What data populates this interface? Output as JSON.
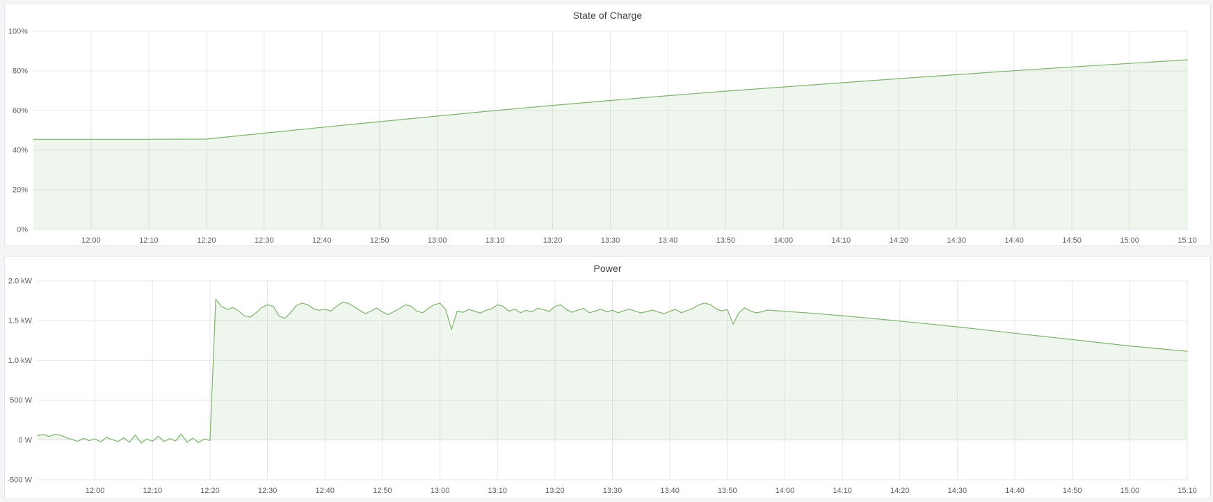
{
  "colors": {
    "page_bg": "#f4f5f6",
    "panel_bg": "#ffffff",
    "panel_border": "#e3e5e8",
    "title_text": "#3f434a",
    "axis_text": "#5a5f66",
    "grid": "#e6e7e9",
    "series_green": "#7EB26D",
    "series_fill": "rgba(126,178,109,0.12)"
  },
  "chart_data": [
    {
      "type": "area",
      "title": "State of Charge",
      "ylabel": "",
      "xlabel": "",
      "x_range": [
        "11:50",
        "15:10"
      ],
      "x_ticks": [
        "12:00",
        "12:10",
        "12:20",
        "12:30",
        "12:40",
        "12:50",
        "13:00",
        "13:10",
        "13:20",
        "13:30",
        "13:40",
        "13:50",
        "14:00",
        "14:10",
        "14:20",
        "14:30",
        "14:40",
        "14:50",
        "15:00",
        "15:10"
      ],
      "ylim": [
        0,
        100
      ],
      "y_ticks": [
        {
          "value": 0,
          "label": "0%"
        },
        {
          "value": 20,
          "label": "20%"
        },
        {
          "value": 40,
          "label": "40%"
        },
        {
          "value": 60,
          "label": "60%"
        },
        {
          "value": 80,
          "label": "80%"
        },
        {
          "value": 100,
          "label": "100%"
        }
      ],
      "grid": true,
      "legend": "none",
      "fill_baseline": 0,
      "series": [
        {
          "name": "State of Charge",
          "unit": "%",
          "points": [
            [
              "11:50",
              45.5
            ],
            [
              "12:00",
              45.5
            ],
            [
              "12:10",
              45.5
            ],
            [
              "12:20",
              45.6
            ],
            [
              "12:30",
              48.6
            ],
            [
              "12:40",
              51.5
            ],
            [
              "12:50",
              54.4
            ],
            [
              "13:00",
              57.2
            ],
            [
              "13:10",
              60.0
            ],
            [
              "13:20",
              62.6
            ],
            [
              "13:30",
              65.1
            ],
            [
              "13:40",
              67.5
            ],
            [
              "13:50",
              69.8
            ],
            [
              "14:00",
              71.9
            ],
            [
              "14:10",
              74.0
            ],
            [
              "14:20",
              76.1
            ],
            [
              "14:30",
              78.1
            ],
            [
              "14:40",
              80.1
            ],
            [
              "14:50",
              82.0
            ],
            [
              "15:00",
              83.8
            ],
            [
              "15:10",
              85.6
            ]
          ]
        }
      ]
    },
    {
      "type": "area",
      "title": "Power",
      "ylabel": "",
      "xlabel": "",
      "x_range": [
        "11:50",
        "15:10"
      ],
      "x_ticks": [
        "12:00",
        "12:10",
        "12:20",
        "12:30",
        "12:40",
        "12:50",
        "13:00",
        "13:10",
        "13:20",
        "13:30",
        "13:40",
        "13:50",
        "14:00",
        "14:10",
        "14:20",
        "14:30",
        "14:40",
        "14:50",
        "15:00",
        "15:10"
      ],
      "ylim": [
        -500,
        2000
      ],
      "y_ticks": [
        {
          "value": -500,
          "label": "-500 W"
        },
        {
          "value": 0,
          "label": "0 W"
        },
        {
          "value": 500,
          "label": "500 W"
        },
        {
          "value": 1000,
          "label": "1.0 kW"
        },
        {
          "value": 1500,
          "label": "1.5 kW"
        },
        {
          "value": 2000,
          "label": "2.0 kW"
        }
      ],
      "grid": true,
      "legend": "none",
      "fill_baseline": 0,
      "series": [
        {
          "name": "Power",
          "unit": "W",
          "points": [
            [
              "11:50",
              55
            ],
            [
              "11:51",
              70
            ],
            [
              "11:52",
              45
            ],
            [
              "11:53",
              72
            ],
            [
              "11:54",
              60
            ],
            [
              "11:55",
              30
            ],
            [
              "11:56",
              8
            ],
            [
              "11:57",
              -18
            ],
            [
              "11:58",
              22
            ],
            [
              "11:59",
              -8
            ],
            [
              "12:00",
              15
            ],
            [
              "12:01",
              -25
            ],
            [
              "12:02",
              35
            ],
            [
              "12:03",
              5
            ],
            [
              "12:04",
              -22
            ],
            [
              "12:05",
              28
            ],
            [
              "12:06",
              -30
            ],
            [
              "12:07",
              65
            ],
            [
              "12:08",
              -38
            ],
            [
              "12:09",
              12
            ],
            [
              "12:10",
              -15
            ],
            [
              "12:11",
              48
            ],
            [
              "12:12",
              -20
            ],
            [
              "12:13",
              18
            ],
            [
              "12:14",
              -12
            ],
            [
              "12:15",
              75
            ],
            [
              "12:16",
              -28
            ],
            [
              "12:17",
              22
            ],
            [
              "12:18",
              -32
            ],
            [
              "12:19",
              12
            ],
            [
              "12:20",
              -5
            ],
            [
              "12:21",
              1770
            ],
            [
              "12:22",
              1680
            ],
            [
              "12:23",
              1640
            ],
            [
              "12:24",
              1665
            ],
            [
              "12:25",
              1620
            ],
            [
              "12:26",
              1560
            ],
            [
              "12:27",
              1545
            ],
            [
              "12:28",
              1600
            ],
            [
              "12:29",
              1665
            ],
            [
              "12:30",
              1700
            ],
            [
              "12:31",
              1680
            ],
            [
              "12:32",
              1560
            ],
            [
              "12:33",
              1530
            ],
            [
              "12:34",
              1600
            ],
            [
              "12:35",
              1690
            ],
            [
              "12:36",
              1720
            ],
            [
              "12:37",
              1700
            ],
            [
              "12:38",
              1650
            ],
            [
              "12:39",
              1630
            ],
            [
              "12:40",
              1645
            ],
            [
              "12:41",
              1620
            ],
            [
              "12:42",
              1680
            ],
            [
              "12:43",
              1730
            ],
            [
              "12:44",
              1720
            ],
            [
              "12:45",
              1680
            ],
            [
              "12:46",
              1630
            ],
            [
              "12:47",
              1590
            ],
            [
              "12:48",
              1620
            ],
            [
              "12:49",
              1660
            ],
            [
              "12:50",
              1610
            ],
            [
              "12:51",
              1575
            ],
            [
              "12:52",
              1615
            ],
            [
              "12:53",
              1655
            ],
            [
              "12:54",
              1700
            ],
            [
              "12:55",
              1680
            ],
            [
              "12:56",
              1620
            ],
            [
              "12:57",
              1600
            ],
            [
              "12:58",
              1655
            ],
            [
              "12:59",
              1700
            ],
            [
              "13:00",
              1720
            ],
            [
              "13:01",
              1640
            ],
            [
              "13:02",
              1390
            ],
            [
              "13:03",
              1620
            ],
            [
              "13:04",
              1605
            ],
            [
              "13:05",
              1640
            ],
            [
              "13:06",
              1620
            ],
            [
              "13:07",
              1595
            ],
            [
              "13:08",
              1630
            ],
            [
              "13:09",
              1650
            ],
            [
              "13:10",
              1700
            ],
            [
              "13:11",
              1680
            ],
            [
              "13:12",
              1620
            ],
            [
              "13:13",
              1645
            ],
            [
              "13:14",
              1600
            ],
            [
              "13:15",
              1630
            ],
            [
              "13:16",
              1610
            ],
            [
              "13:17",
              1655
            ],
            [
              "13:18",
              1640
            ],
            [
              "13:19",
              1615
            ],
            [
              "13:20",
              1680
            ],
            [
              "13:21",
              1700
            ],
            [
              "13:22",
              1640
            ],
            [
              "13:23",
              1605
            ],
            [
              "13:24",
              1635
            ],
            [
              "13:25",
              1655
            ],
            [
              "13:26",
              1600
            ],
            [
              "13:27",
              1620
            ],
            [
              "13:28",
              1645
            ],
            [
              "13:29",
              1610
            ],
            [
              "13:30",
              1630
            ],
            [
              "13:31",
              1600
            ],
            [
              "13:32",
              1625
            ],
            [
              "13:33",
              1645
            ],
            [
              "13:34",
              1618
            ],
            [
              "13:35",
              1598
            ],
            [
              "13:36",
              1615
            ],
            [
              "13:37",
              1632
            ],
            [
              "13:38",
              1608
            ],
            [
              "13:39",
              1588
            ],
            [
              "13:40",
              1620
            ],
            [
              "13:41",
              1642
            ],
            [
              "13:42",
              1600
            ],
            [
              "13:43",
              1628
            ],
            [
              "13:44",
              1652
            ],
            [
              "13:45",
              1698
            ],
            [
              "13:46",
              1722
            ],
            [
              "13:47",
              1702
            ],
            [
              "13:48",
              1652
            ],
            [
              "13:49",
              1622
            ],
            [
              "13:50",
              1640
            ],
            [
              "13:51",
              1455
            ],
            [
              "13:52",
              1600
            ],
            [
              "13:53",
              1662
            ],
            [
              "13:54",
              1622
            ],
            [
              "13:55",
              1598
            ],
            [
              "13:56",
              1612
            ],
            [
              "13:57",
              1635
            ],
            [
              "13:58",
              1628
            ],
            [
              "14:00",
              1618
            ],
            [
              "14:05",
              1592
            ],
            [
              "14:10",
              1562
            ],
            [
              "14:15",
              1530
            ],
            [
              "14:20",
              1495
            ],
            [
              "14:25",
              1460
            ],
            [
              "14:30",
              1422
            ],
            [
              "14:35",
              1382
            ],
            [
              "14:40",
              1342
            ],
            [
              "14:45",
              1302
            ],
            [
              "14:50",
              1262
            ],
            [
              "14:55",
              1222
            ],
            [
              "15:00",
              1182
            ],
            [
              "15:05",
              1148
            ],
            [
              "15:10",
              1115
            ]
          ]
        }
      ]
    }
  ]
}
